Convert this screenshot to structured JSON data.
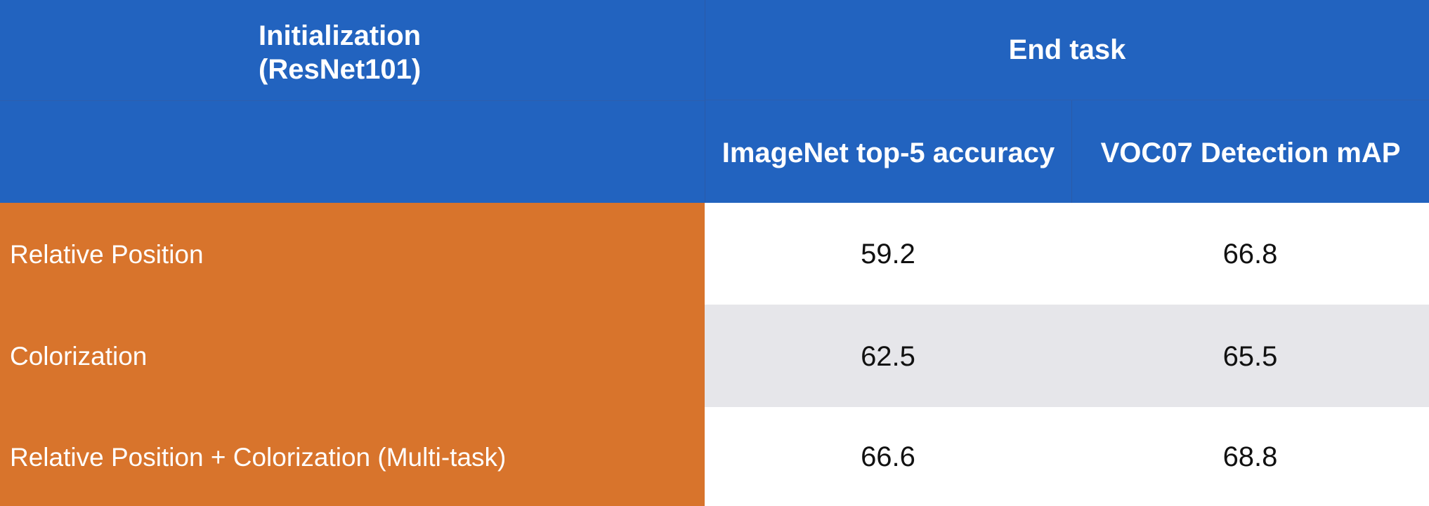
{
  "header": {
    "initialization_line1": "Initialization",
    "initialization_line2": "(ResNet101)",
    "end_task": "End task",
    "columns": [
      "ImageNet top-5 accuracy",
      "VOC07 Detection mAP"
    ]
  },
  "rows": [
    {
      "label": "Relative Position",
      "values": [
        "59.2",
        "66.8"
      ]
    },
    {
      "label": "Colorization",
      "values": [
        "62.5",
        "65.5"
      ]
    },
    {
      "label": "Relative Position + Colorization (Multi-task)",
      "values": [
        "66.6",
        "68.8"
      ]
    }
  ],
  "colors": {
    "header_blue": "#2263bf",
    "row_label_orange": "#d8742c",
    "alt_row_gray": "#e6e6ea"
  }
}
